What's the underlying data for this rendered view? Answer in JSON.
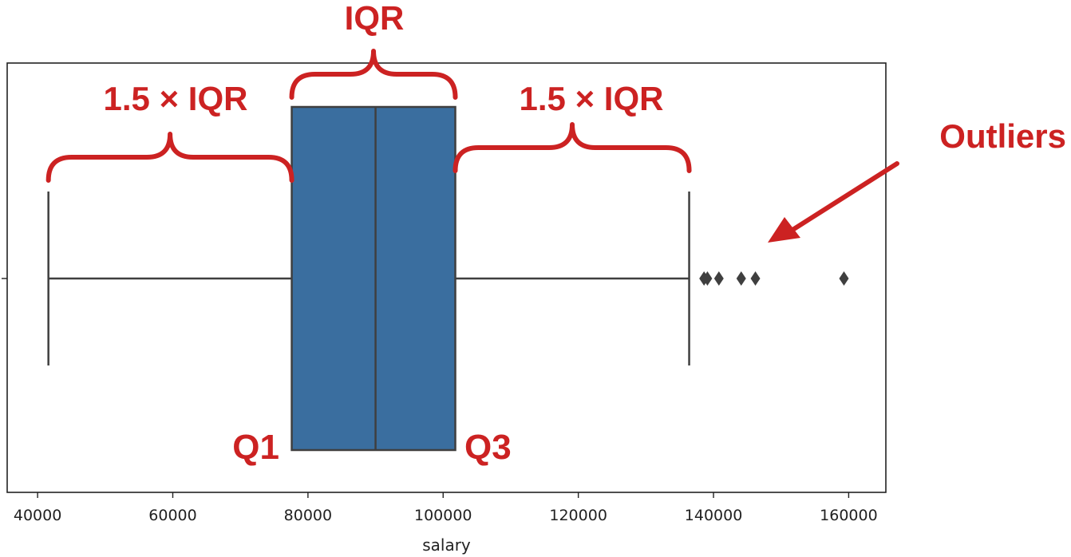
{
  "chart_data": {
    "type": "box",
    "xlabel": "salary",
    "xlim": [
      35500,
      165500
    ],
    "x_ticks": [
      "40000",
      "60000",
      "80000",
      "100000",
      "120000",
      "140000",
      "160000"
    ],
    "box": {
      "whisker_low": 41600,
      "q1": 77600,
      "median": 90000,
      "q3": 101800,
      "whisker_high": 136400
    },
    "outliers": [
      138600,
      139100,
      140800,
      144100,
      146200,
      159300
    ],
    "annotations": {
      "iqr": "IQR",
      "left_range": "1.5 × IQR",
      "right_range": "1.5 × IQR",
      "outliers": "Outliers",
      "q1": "Q1",
      "q3": "Q3"
    },
    "colors": {
      "box_fill": "#3a6e9f",
      "line": "#3f3f3f",
      "annotation": "#cc2222"
    },
    "grid": false
  }
}
